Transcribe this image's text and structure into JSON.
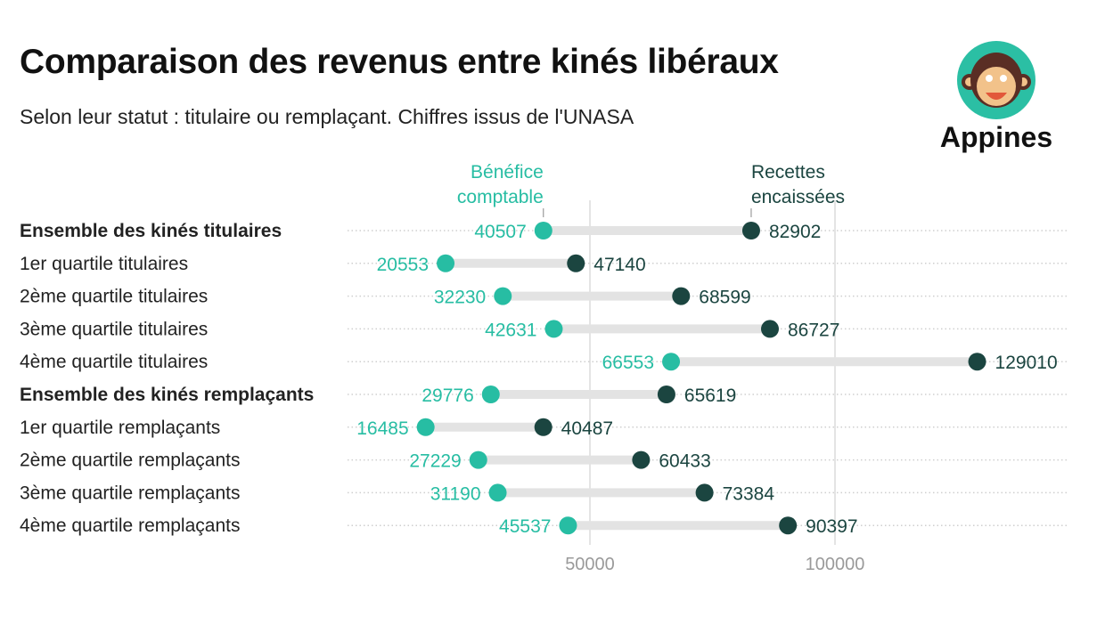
{
  "title": "Comparaison des revenus entre kinés libéraux",
  "subtitle": "Selon leur statut : titulaire ou remplaçant. Chiffres issus de l'UNASA",
  "logo_text": "Appines",
  "colors": {
    "benefice": "#27bda3",
    "recettes": "#1b4540",
    "bar": "#e3e3e3"
  },
  "chart_data": {
    "type": "dumbbell",
    "title": "Comparaison des revenus entre kinés libéraux",
    "subtitle": "Selon leur statut : titulaire ou remplaçant. Chiffres issus de l'UNASA",
    "categories": [
      "Ensemble des kinés titulaires",
      "1er quartile titulaires",
      "2ème quartile titulaires",
      "3ème quartile titulaires",
      "4ème quartile titulaires",
      "Ensemble des kinés remplaçants",
      "1er quartile remplaçants",
      "2ème quartile remplaçants",
      "3ème quartile remplaçants",
      "4ème quartile remplaçants"
    ],
    "bold_categories": [
      "Ensemble des kinés titulaires",
      "Ensemble des kinés remplaçants"
    ],
    "series": [
      {
        "name": "Bénéfice comptable",
        "values": [
          40507,
          20553,
          32230,
          42631,
          66553,
          29776,
          16485,
          27229,
          31190,
          45537
        ]
      },
      {
        "name": "Recettes encaissées",
        "values": [
          82902,
          47140,
          68599,
          86727,
          129010,
          65619,
          40487,
          60433,
          73384,
          90397
        ]
      }
    ],
    "xlim": [
      0,
      147000
    ],
    "xticks": [
      50000,
      100000
    ],
    "grid": true,
    "legend": "annotations above first row"
  }
}
